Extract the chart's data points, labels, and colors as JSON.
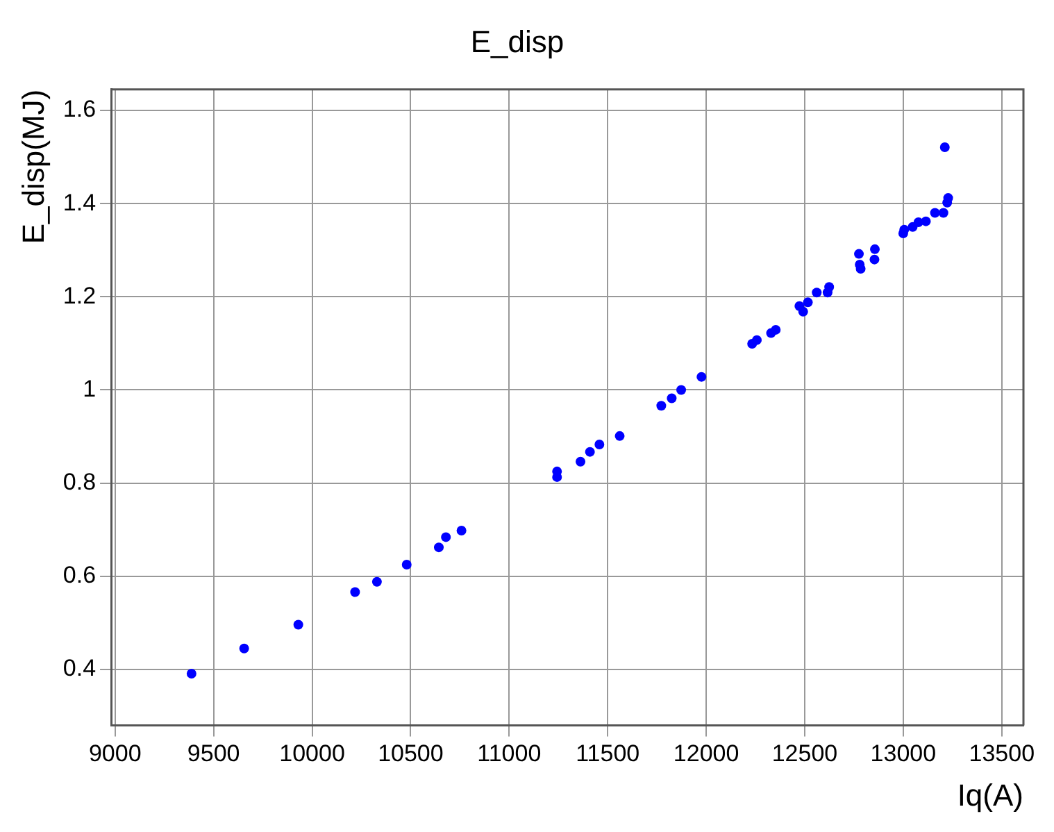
{
  "chart_data": {
    "type": "scatter",
    "title": "E_disp",
    "xlabel": "Iq(A)",
    "ylabel": "E_disp(MJ)",
    "xlim": [
      8980,
      13610
    ],
    "ylim": [
      0.28,
      1.645
    ],
    "xticks": [
      9000,
      9500,
      10000,
      10500,
      11000,
      11500,
      12000,
      12500,
      13000,
      13500
    ],
    "yticks": [
      0.4,
      0.6,
      0.8,
      1,
      1.2,
      1.4,
      1.6
    ],
    "grid": true,
    "legend": false,
    "marker": "circle",
    "series": [
      {
        "color": "#0000ff",
        "x": [
          9388,
          9655,
          9930,
          10218,
          10329,
          10480,
          10643,
          10679,
          10758,
          11243,
          11243,
          11362,
          11410,
          11458,
          11561,
          11772,
          11825,
          11873,
          11976,
          12233,
          12257,
          12329,
          12353,
          12473,
          12492,
          12516,
          12561,
          12616,
          12624,
          12775,
          12779,
          12784,
          12856,
          12854,
          13000,
          13005,
          13048,
          13077,
          13115,
          13151,
          13161,
          13204,
          13223,
          13228,
          13211
        ],
        "values": [
          0.391,
          0.445,
          0.496,
          0.566,
          0.588,
          0.625,
          0.662,
          0.684,
          0.698,
          0.825,
          0.813,
          0.846,
          0.867,
          0.883,
          0.901,
          0.966,
          0.982,
          1.0,
          1.028,
          1.099,
          1.107,
          1.122,
          1.129,
          1.18,
          1.168,
          1.188,
          1.209,
          1.209,
          1.221,
          1.292,
          1.269,
          1.26,
          1.302,
          1.28,
          1.336,
          1.344,
          1.35,
          1.36,
          1.362,
          null,
          1.38,
          1.38,
          1.402,
          1.412,
          1.521
        ]
      }
    ]
  }
}
